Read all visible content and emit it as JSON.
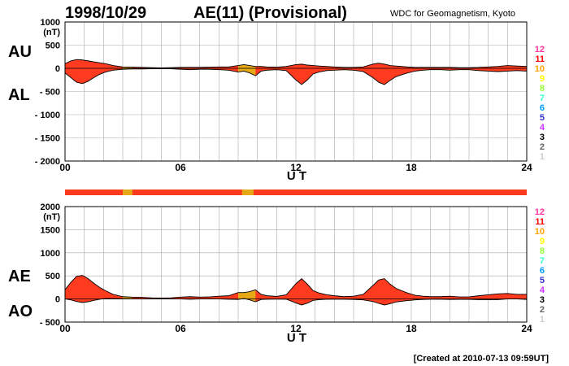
{
  "header": {
    "date": "1998/10/29",
    "title": "AE(11) (Provisional)",
    "source": "WDC for Geomagnetism, Kyoto"
  },
  "footer": {
    "created": "[Created at 2010-07-13 09:59UT]"
  },
  "station_legend": [
    "12",
    "11",
    "10",
    "9",
    "8",
    "7",
    "6",
    "5",
    "4",
    "3",
    "2",
    "1"
  ],
  "station_colors": [
    "#ff3399",
    "#ff0000",
    "#ffa500",
    "#ffff00",
    "#99ff33",
    "#33ffcc",
    "#0099ff",
    "#3333cc",
    "#cc33ff",
    "#000000",
    "#666666",
    "#cccccc"
  ],
  "colors": {
    "fill_main": "#ff3b1f",
    "fill_alt": "#e6a817",
    "line": "#000000",
    "grid": "#aaaaaa"
  },
  "chart_data": [
    {
      "type": "area",
      "panel": "AU/AL",
      "labels": {
        "upper": "AU",
        "lower": "AL"
      },
      "unit": "(nT)",
      "xlabel": "U T",
      "xlim": [
        0,
        24
      ],
      "x_ticks": [
        "00",
        "06",
        "12",
        "18",
        "24"
      ],
      "ylim": [
        -2000,
        1000
      ],
      "y_ticks": [
        "1000",
        "500",
        "0",
        "- 500",
        "- 1000",
        "- 1500",
        "- 2000"
      ],
      "grid": true,
      "x": [
        0.0,
        0.3,
        0.6,
        0.9,
        1.2,
        1.5,
        1.8,
        2.1,
        2.5,
        3.0,
        3.5,
        4.0,
        4.5,
        5.0,
        5.5,
        6.0,
        6.5,
        7.0,
        7.5,
        8.0,
        8.5,
        9.0,
        9.3,
        9.6,
        9.9,
        10.2,
        10.5,
        11.0,
        11.5,
        12.0,
        12.3,
        12.6,
        12.9,
        13.2,
        13.6,
        14.0,
        14.5,
        15.0,
        15.5,
        16.0,
        16.3,
        16.6,
        16.9,
        17.2,
        17.5,
        17.8,
        18.2,
        18.6,
        19.0,
        19.5,
        20.0,
        20.5,
        21.0,
        21.5,
        22.0,
        22.5,
        23.0,
        23.5,
        24.0
      ],
      "series": [
        {
          "name": "AU",
          "values": [
            100,
            160,
            190,
            180,
            160,
            140,
            120,
            100,
            60,
            30,
            25,
            20,
            15,
            10,
            15,
            20,
            20,
            20,
            25,
            30,
            30,
            60,
            80,
            60,
            40,
            40,
            30,
            25,
            40,
            80,
            90,
            70,
            60,
            50,
            40,
            30,
            20,
            20,
            30,
            90,
            110,
            90,
            60,
            50,
            40,
            30,
            20,
            20,
            20,
            20,
            20,
            15,
            15,
            20,
            30,
            40,
            60,
            50,
            40
          ]
        },
        {
          "name": "AL",
          "values": [
            -100,
            -200,
            -300,
            -330,
            -280,
            -200,
            -130,
            -80,
            -40,
            -20,
            -15,
            -15,
            -10,
            -10,
            -10,
            -20,
            -30,
            -20,
            -20,
            -30,
            -40,
            -80,
            -60,
            -100,
            -160,
            -60,
            -40,
            -30,
            -50,
            -250,
            -350,
            -250,
            -120,
            -80,
            -50,
            -40,
            -30,
            -40,
            -70,
            -200,
            -300,
            -350,
            -260,
            -180,
            -140,
            -100,
            -60,
            -40,
            -30,
            -30,
            -40,
            -30,
            -30,
            -50,
            -60,
            -70,
            -60,
            -50,
            -60
          ]
        }
      ]
    },
    {
      "type": "area",
      "panel": "AE/AO",
      "labels": {
        "upper": "AE",
        "lower": "AO"
      },
      "unit": "(nT)",
      "xlabel": "U T",
      "xlim": [
        0,
        24
      ],
      "x_ticks": [
        "00",
        "06",
        "12",
        "18",
        "24"
      ],
      "ylim": [
        -500,
        2000
      ],
      "y_ticks": [
        "2000",
        "1500",
        "1000",
        "500",
        "0",
        "- 500"
      ],
      "grid": true,
      "x": [
        0.0,
        0.3,
        0.6,
        0.9,
        1.2,
        1.5,
        1.8,
        2.1,
        2.5,
        3.0,
        3.5,
        4.0,
        4.5,
        5.0,
        5.5,
        6.0,
        6.5,
        7.0,
        7.5,
        8.0,
        8.5,
        9.0,
        9.3,
        9.6,
        9.9,
        10.2,
        10.5,
        11.0,
        11.5,
        12.0,
        12.3,
        12.6,
        12.9,
        13.2,
        13.6,
        14.0,
        14.5,
        15.0,
        15.5,
        16.0,
        16.3,
        16.6,
        16.9,
        17.2,
        17.5,
        17.8,
        18.2,
        18.6,
        19.0,
        19.5,
        20.0,
        20.5,
        21.0,
        21.5,
        22.0,
        22.5,
        23.0,
        23.5,
        24.0
      ],
      "series": [
        {
          "name": "AE",
          "values": [
            200,
            360,
            490,
            510,
            440,
            340,
            250,
            180,
            100,
            50,
            40,
            35,
            25,
            20,
            25,
            40,
            50,
            40,
            45,
            60,
            70,
            140,
            140,
            160,
            200,
            100,
            70,
            55,
            90,
            330,
            440,
            320,
            180,
            130,
            90,
            70,
            50,
            60,
            100,
            290,
            410,
            440,
            320,
            230,
            180,
            130,
            80,
            60,
            50,
            50,
            60,
            45,
            45,
            70,
            90,
            110,
            120,
            100,
            100
          ]
        },
        {
          "name": "AO",
          "values": [
            0,
            -20,
            -55,
            -75,
            -60,
            -30,
            -5,
            10,
            10,
            5,
            5,
            3,
            3,
            0,
            3,
            0,
            -5,
            0,
            3,
            0,
            -5,
            -10,
            10,
            -20,
            -60,
            -10,
            -5,
            -3,
            -5,
            -85,
            -130,
            -90,
            -30,
            -15,
            -5,
            -5,
            -5,
            -10,
            -20,
            -55,
            -95,
            -130,
            -100,
            -65,
            -50,
            -35,
            -20,
            -10,
            -5,
            -5,
            -10,
            -8,
            -8,
            -15,
            -15,
            -15,
            0,
            0,
            -10
          ]
        }
      ]
    }
  ],
  "quality_bar": {
    "full_color": "#ff3b1f",
    "segments": [
      {
        "start": 3.0,
        "end": 3.5,
        "color": "#e6a817"
      },
      {
        "start": 9.2,
        "end": 9.8,
        "color": "#e6a817"
      }
    ]
  }
}
